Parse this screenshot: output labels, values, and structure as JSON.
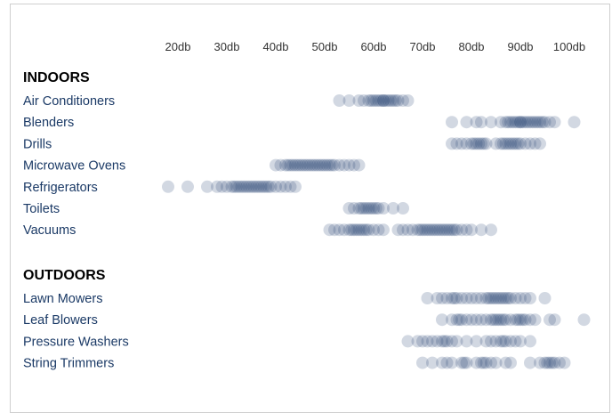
{
  "chart_data": {
    "type": "scatter",
    "color": "#1e3d6e",
    "x_ticks": [
      "20db",
      "30db",
      "40db",
      "50db",
      "60db",
      "70db",
      "80db",
      "90db",
      "100db"
    ],
    "x_tick_values": [
      20,
      30,
      40,
      50,
      60,
      70,
      80,
      90,
      100
    ],
    "xlim": [
      15,
      105
    ],
    "groups": [
      {
        "label": "INDOORS",
        "categories": [
          {
            "name": "Air Conditioners",
            "values": [
              53,
              55,
              57,
              58,
              59,
              59.5,
              60,
              60.5,
              61,
              61.5,
              62,
              62,
              62.5,
              63,
              63.5,
              64,
              64.5,
              65,
              66,
              67
            ]
          },
          {
            "name": "Blenders",
            "values": [
              76,
              79,
              81,
              82,
              84,
              86,
              87,
              87.5,
              88,
              88.5,
              89,
              89.5,
              90,
              90,
              90.5,
              91,
              91.5,
              92,
              92.5,
              93,
              93.5,
              94,
              94.5,
              95,
              96,
              97,
              101
            ]
          },
          {
            "name": "Drills",
            "values": [
              76,
              77,
              78,
              79,
              80,
              80.5,
              81,
              81.5,
              82,
              82.5,
              83,
              85,
              86,
              86.5,
              87,
              87.5,
              88,
              88.5,
              89,
              89.5,
              90,
              91,
              92,
              93,
              94
            ]
          },
          {
            "name": "Microwave Ovens",
            "values": [
              40,
              41,
              42,
              42.5,
              43,
              43.5,
              44,
              44.5,
              45,
              45.5,
              46,
              46.5,
              47,
              47.5,
              48,
              48.5,
              49,
              49.5,
              50,
              50.5,
              51,
              51.5,
              52,
              53,
              54,
              55,
              56,
              57
            ]
          },
          {
            "name": "Refrigerators",
            "values": [
              18,
              22,
              26,
              28,
              29,
              30,
              31,
              31.5,
              32,
              32.5,
              33,
              33.5,
              34,
              34.5,
              35,
              35.5,
              36,
              36.5,
              37,
              37.5,
              38,
              38.5,
              39,
              40,
              41,
              42,
              43,
              44
            ]
          },
          {
            "name": "Toilets",
            "values": [
              55,
              56,
              57,
              57.5,
              58,
              58.5,
              59,
              59.5,
              60,
              60.5,
              61,
              62,
              64,
              66
            ]
          },
          {
            "name": "Vacuums",
            "values": [
              51,
              52,
              53,
              54,
              55,
              55.5,
              56,
              56.5,
              57,
              57.5,
              58,
              58.5,
              59,
              60,
              61,
              62,
              65,
              66,
              67,
              68,
              69,
              69.5,
              70,
              70.5,
              71,
              71.5,
              72,
              72.5,
              73,
              73.5,
              74,
              74.5,
              75,
              75.5,
              76,
              76.5,
              77,
              78,
              79,
              80,
              82,
              84
            ]
          }
        ]
      },
      {
        "label": "OUTDOORS",
        "categories": [
          {
            "name": "Lawn Mowers",
            "values": [
              71,
              73,
              74,
              75,
              76,
              76.5,
              77,
              78,
              79,
              80,
              81,
              82,
              83,
              83.5,
              84,
              84.5,
              85,
              85.5,
              86,
              86.5,
              87,
              87.5,
              88,
              89,
              90,
              91,
              92,
              95
            ]
          },
          {
            "name": "Leaf Blowers",
            "values": [
              74,
              76,
              77,
              77.5,
              78,
              79,
              80,
              81,
              82,
              83,
              84,
              84.5,
              85,
              85.5,
              86,
              86.5,
              87,
              88,
              89,
              89.5,
              90,
              90.5,
              91,
              92,
              93,
              96,
              97,
              103
            ]
          },
          {
            "name": "Pressure Washers",
            "values": [
              67,
              69,
              70,
              71,
              72,
              73,
              74,
              74.5,
              75,
              76,
              77,
              79,
              81,
              83,
              84,
              85,
              86,
              86.5,
              87,
              88,
              89,
              90,
              92
            ]
          },
          {
            "name": "String Trimmers",
            "values": [
              70,
              72,
              74,
              75,
              76,
              78,
              78.5,
              79,
              81,
              82,
              82.5,
              83,
              84,
              85,
              87,
              88,
              92,
              94,
              95,
              95.5,
              96,
              96.5,
              97,
              98,
              99
            ]
          }
        ]
      }
    ]
  }
}
